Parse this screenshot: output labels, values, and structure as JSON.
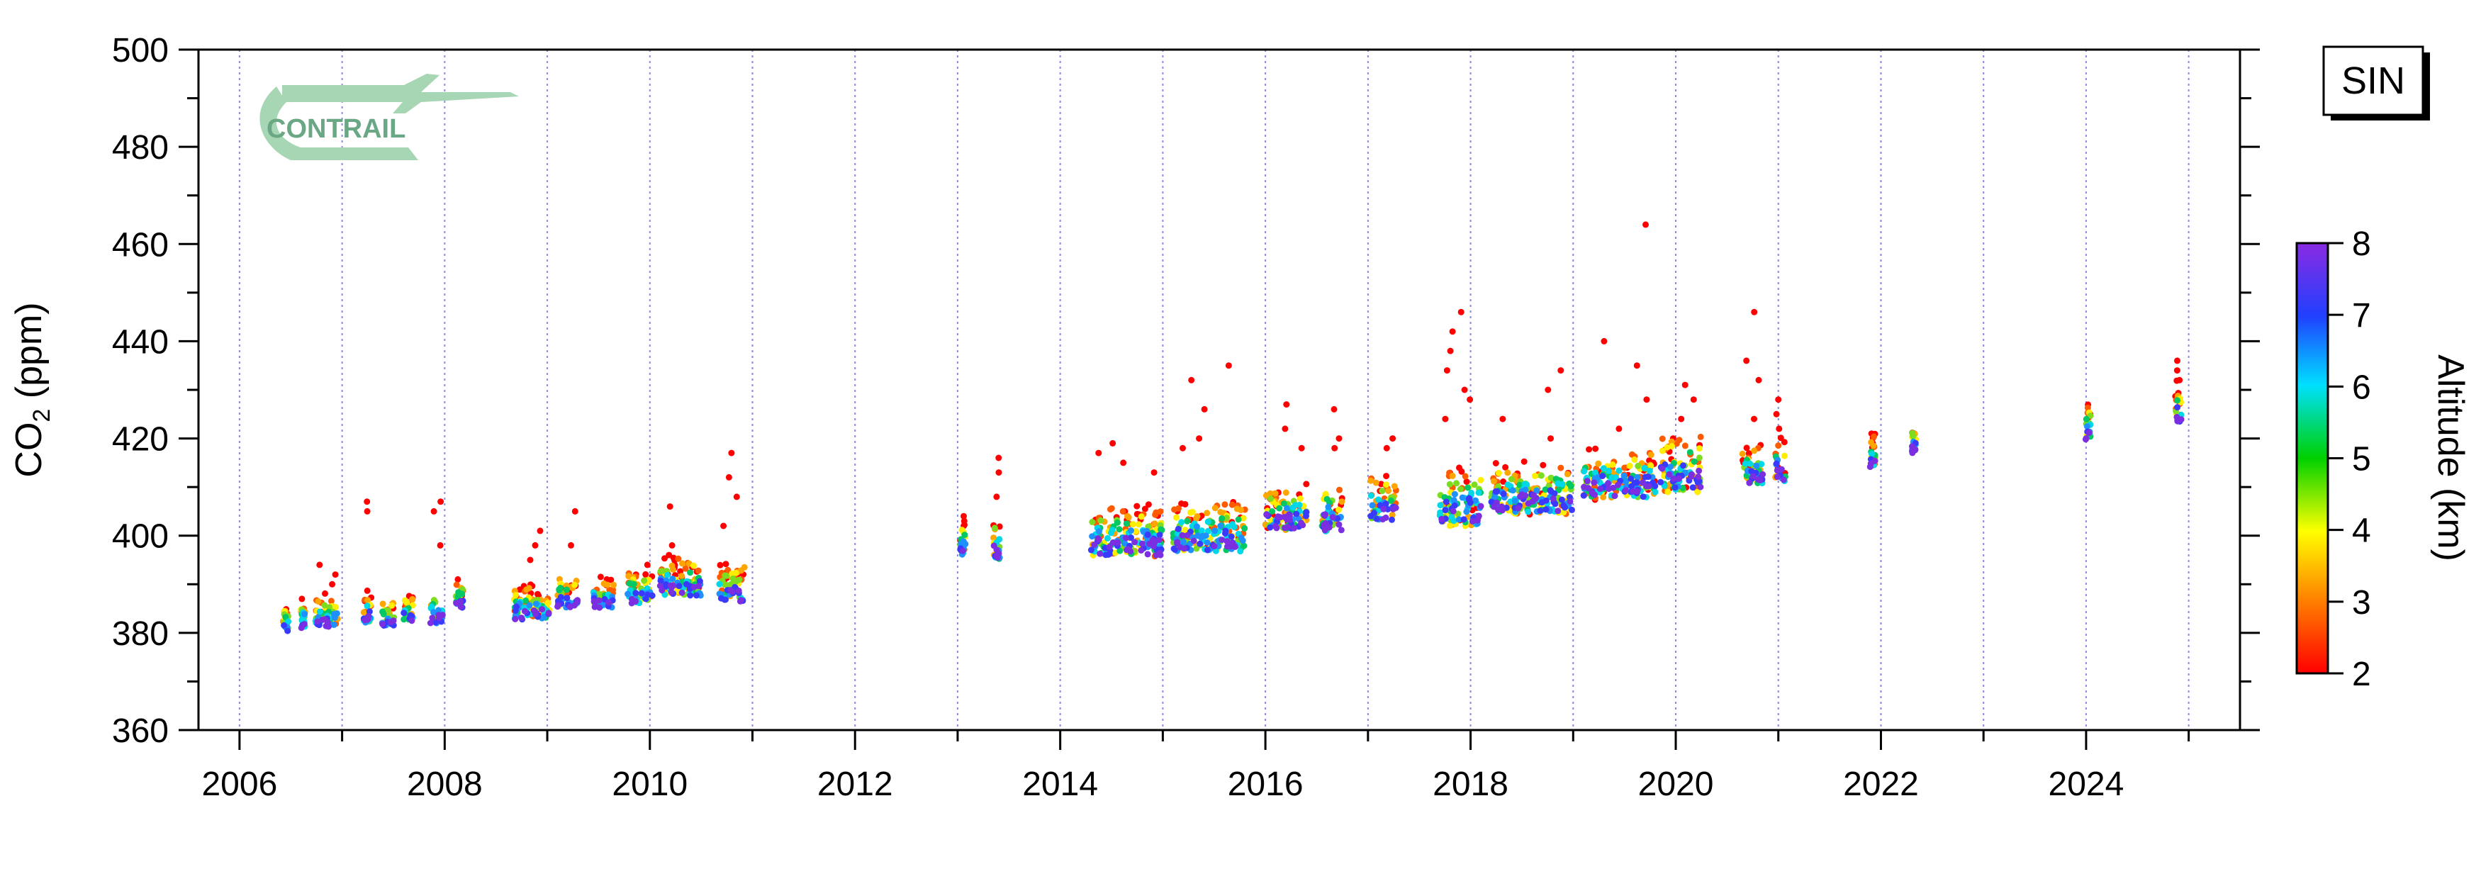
{
  "chart_data": {
    "type": "scatter",
    "title": "",
    "xlabel": "",
    "ylabel": "CO",
    "ylabel_sub": "2",
    "ylabel_unit": " (ppm)",
    "xlim": [
      2005.6,
      2025.5
    ],
    "ylim": [
      360,
      500
    ],
    "x_ticks": [
      2006,
      2008,
      2010,
      2012,
      2014,
      2016,
      2018,
      2020,
      2022,
      2024
    ],
    "y_ticks": [
      360,
      380,
      400,
      420,
      440,
      460,
      480,
      500
    ],
    "grid": "vertical dotted lines at each year",
    "station_label": "SIN",
    "logo_text": "CONTRAIL",
    "colorbar": {
      "label": "Altitude (km)",
      "range": [
        2,
        8
      ],
      "ticks": [
        2,
        3,
        4,
        5,
        6,
        7,
        8
      ],
      "colormap": "rainbow (red = low, purple = high)"
    },
    "clusters": [
      {
        "t": 2006.45,
        "w": 0.05,
        "v": 382,
        "s": 1.5,
        "o": []
      },
      {
        "t": 2006.62,
        "w": 0.04,
        "v": 383,
        "s": 1.8,
        "o": [
          387
        ]
      },
      {
        "t": 2006.85,
        "w": 0.22,
        "v": 383,
        "s": 2.0,
        "o": [
          394,
          392,
          390
        ]
      },
      {
        "t": 2007.25,
        "w": 0.08,
        "v": 384,
        "s": 2.0,
        "o": [
          407,
          405
        ]
      },
      {
        "t": 2007.45,
        "w": 0.12,
        "v": 383,
        "s": 1.5,
        "o": [
          386
        ]
      },
      {
        "t": 2007.65,
        "w": 0.1,
        "v": 384,
        "s": 1.5,
        "o": []
      },
      {
        "t": 2007.92,
        "w": 0.12,
        "v": 384,
        "s": 2.0,
        "o": [
          407,
          405,
          398
        ]
      },
      {
        "t": 2008.15,
        "w": 0.08,
        "v": 387,
        "s": 1.5,
        "o": [
          391
        ]
      },
      {
        "t": 2008.85,
        "w": 0.35,
        "v": 385,
        "s": 2.2,
        "o": [
          398,
          401,
          395
        ]
      },
      {
        "t": 2009.2,
        "w": 0.2,
        "v": 387,
        "s": 2.2,
        "o": [
          405,
          398
        ]
      },
      {
        "t": 2009.55,
        "w": 0.2,
        "v": 387,
        "s": 1.8,
        "o": [
          391
        ]
      },
      {
        "t": 2009.9,
        "w": 0.25,
        "v": 388,
        "s": 2.0,
        "o": [
          394,
          392
        ]
      },
      {
        "t": 2010.3,
        "w": 0.4,
        "v": 390,
        "s": 2.5,
        "o": [
          406,
          398,
          396
        ]
      },
      {
        "t": 2010.8,
        "w": 0.25,
        "v": 389,
        "s": 2.5,
        "o": [
          417,
          412,
          408,
          402
        ]
      },
      {
        "t": 2013.05,
        "w": 0.05,
        "v": 398,
        "s": 2.0,
        "o": [
          404,
          402
        ]
      },
      {
        "t": 2013.38,
        "w": 0.06,
        "v": 398,
        "s": 3.0,
        "o": [
          416,
          413,
          408
        ]
      },
      {
        "t": 2014.65,
        "w": 0.7,
        "v": 399,
        "s": 3.5,
        "o": [
          419,
          417,
          415,
          413
        ]
      },
      {
        "t": 2015.45,
        "w": 0.7,
        "v": 400,
        "s": 3.5,
        "o": [
          435,
          432,
          426,
          420,
          418
        ]
      },
      {
        "t": 2016.2,
        "w": 0.4,
        "v": 404,
        "s": 3.0,
        "o": [
          427,
          422,
          418
        ]
      },
      {
        "t": 2016.65,
        "w": 0.2,
        "v": 404,
        "s": 3.5,
        "o": [
          426,
          420,
          418
        ]
      },
      {
        "t": 2017.15,
        "w": 0.25,
        "v": 406,
        "s": 3.0,
        "o": [
          420,
          418
        ]
      },
      {
        "t": 2017.9,
        "w": 0.4,
        "v": 406,
        "s": 4.0,
        "o": [
          446,
          442,
          438,
          434,
          430,
          428,
          424
        ]
      },
      {
        "t": 2018.6,
        "w": 0.8,
        "v": 408,
        "s": 3.5,
        "o": [
          434,
          430,
          424,
          420
        ]
      },
      {
        "t": 2019.45,
        "w": 0.7,
        "v": 411,
        "s": 3.5,
        "o": [
          464,
          440,
          435,
          428,
          422
        ]
      },
      {
        "t": 2020.05,
        "w": 0.4,
        "v": 413,
        "s": 4.0,
        "o": [
          431,
          428,
          424,
          420
        ]
      },
      {
        "t": 2020.75,
        "w": 0.2,
        "v": 413,
        "s": 2.5,
        "o": [
          446,
          436,
          432,
          424
        ]
      },
      {
        "t": 2021.02,
        "w": 0.1,
        "v": 414,
        "s": 3.0,
        "o": [
          428,
          425,
          422
        ]
      },
      {
        "t": 2021.92,
        "w": 0.05,
        "v": 416,
        "s": 2.0,
        "o": [
          421,
          419
        ]
      },
      {
        "t": 2022.32,
        "w": 0.04,
        "v": 419,
        "s": 1.5,
        "o": [
          421
        ]
      },
      {
        "t": 2024.02,
        "w": 0.05,
        "v": 422,
        "s": 2.0,
        "o": [
          425
        ]
      },
      {
        "t": 2024.9,
        "w": 0.06,
        "v": 426,
        "s": 3.0,
        "o": [
          436,
          434,
          432
        ]
      }
    ]
  }
}
